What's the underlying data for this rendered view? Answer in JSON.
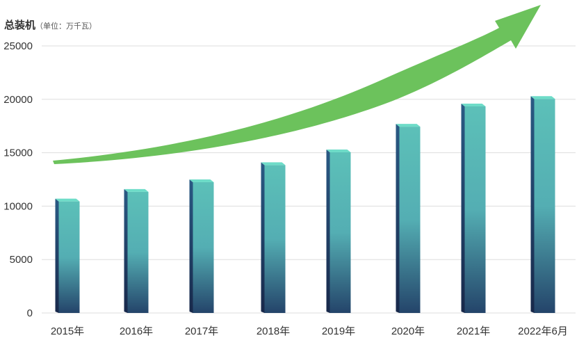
{
  "chart_data": {
    "type": "bar",
    "title": "总装机",
    "unit_label": "（单位：万千瓦）",
    "categories": [
      "2015年",
      "2016年",
      "2017年",
      "2018年",
      "2019年",
      "2020年",
      "2021年",
      "2022年6月"
    ],
    "values": [
      10700,
      11600,
      12500,
      14100,
      15300,
      17700,
      19600,
      20300
    ],
    "ylim": [
      0,
      25000
    ],
    "yticks": [
      0,
      5000,
      10000,
      15000,
      20000,
      25000
    ],
    "grid": true,
    "legend": "none",
    "trend_arrow": true,
    "colors": {
      "bar_top": "#5cc0b8",
      "bar_mid": "#54aeb3",
      "bar_bottom": "#24446a",
      "bar_side_dark": "#1b2e50",
      "bar_cap": "#6edcc8",
      "arrow": "#6cc25c",
      "grid": "#dddddd",
      "axis_text": "#333333"
    }
  }
}
